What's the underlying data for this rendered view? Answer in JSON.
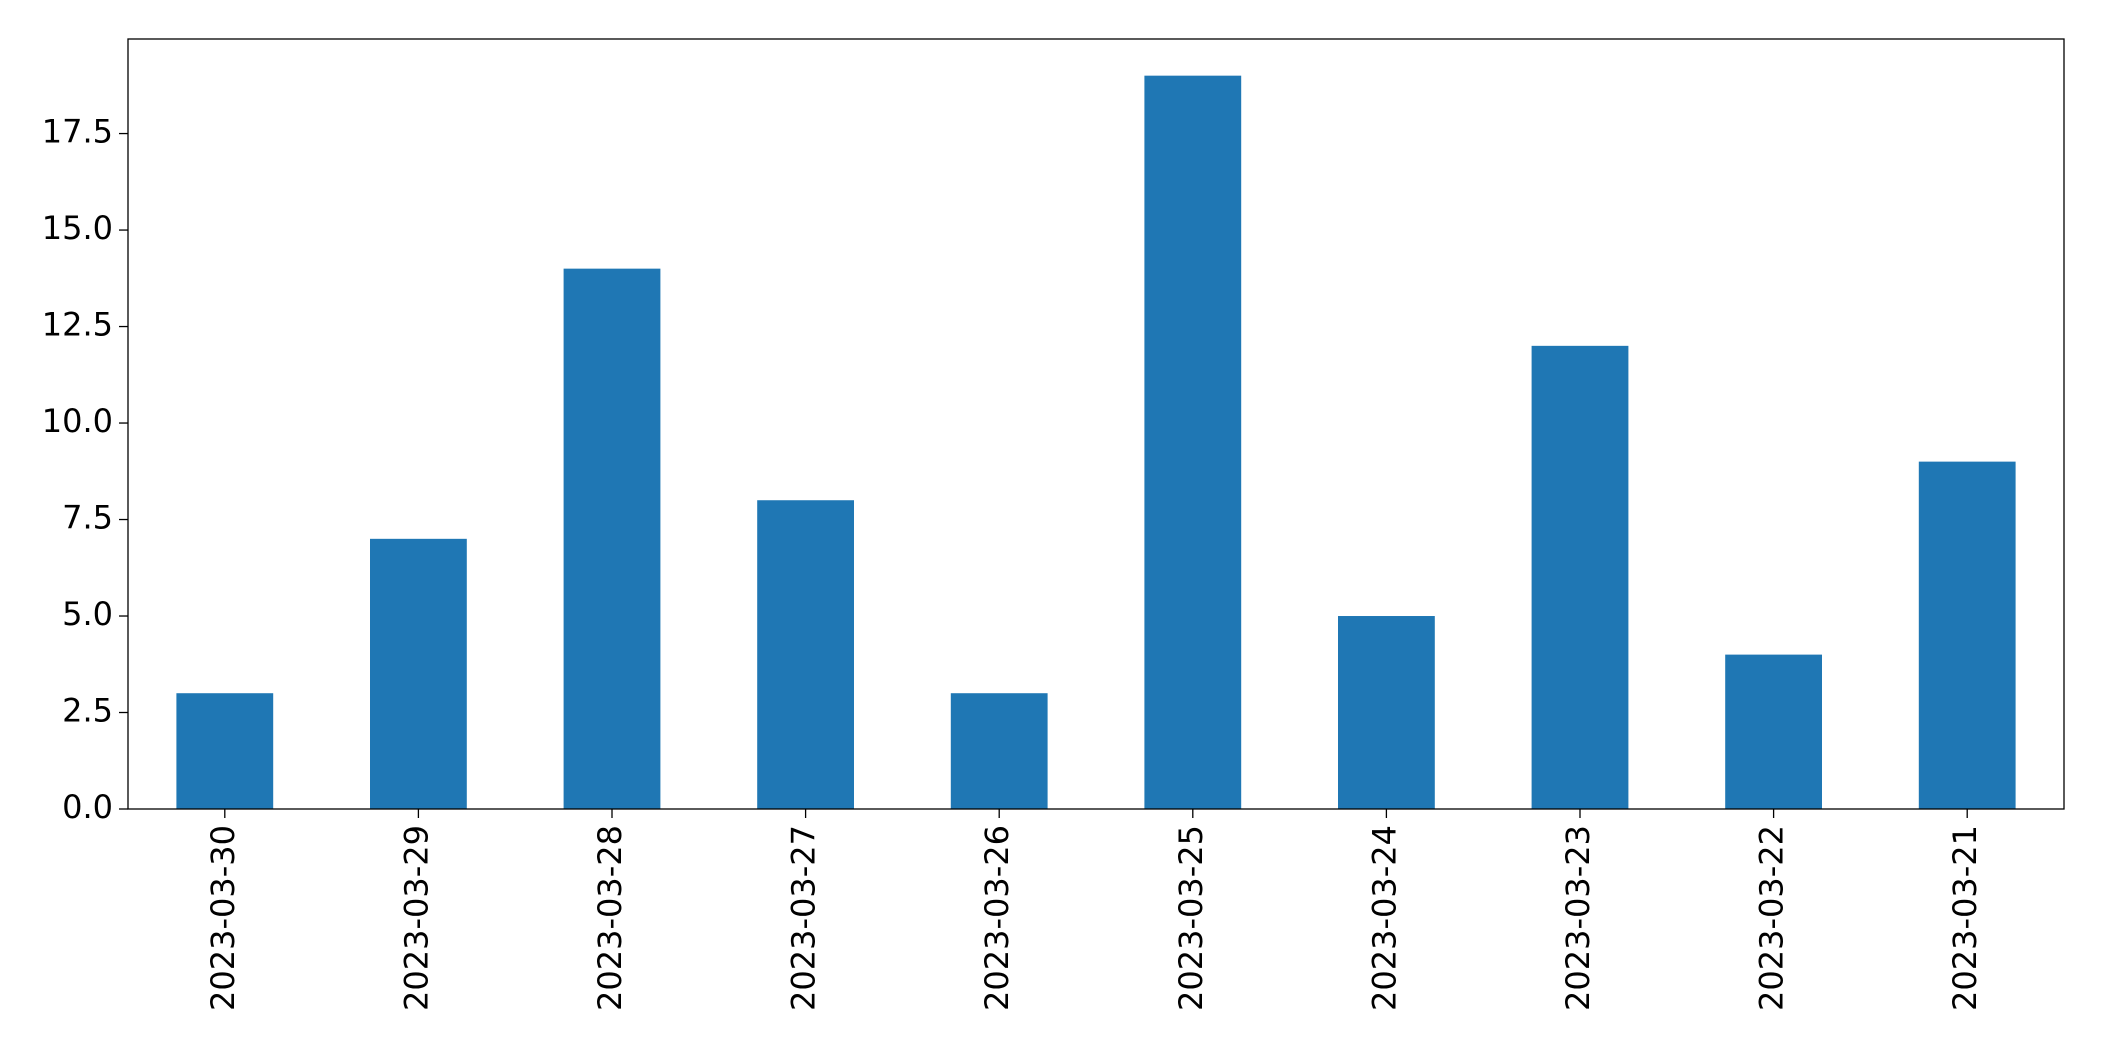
{
  "chart_data": {
    "type": "bar",
    "categories": [
      "2023-03-30",
      "2023-03-29",
      "2023-03-28",
      "2023-03-27",
      "2023-03-26",
      "2023-03-25",
      "2023-03-24",
      "2023-03-23",
      "2023-03-22",
      "2023-03-21"
    ],
    "values": [
      3,
      7,
      14,
      8,
      3,
      19,
      5,
      12,
      4,
      9
    ],
    "color": "#1f77b4",
    "ylim": [
      0,
      19.95
    ],
    "yticks": [
      {
        "value": 0,
        "label": "0.0"
      },
      2.5,
      {
        "value": 5,
        "label": "5.0"
      },
      7.5,
      {
        "value": 10,
        "label": "10.0"
      },
      12.5,
      {
        "value": 15,
        "label": "15.0"
      },
      17.5
    ],
    "grid": false
  }
}
